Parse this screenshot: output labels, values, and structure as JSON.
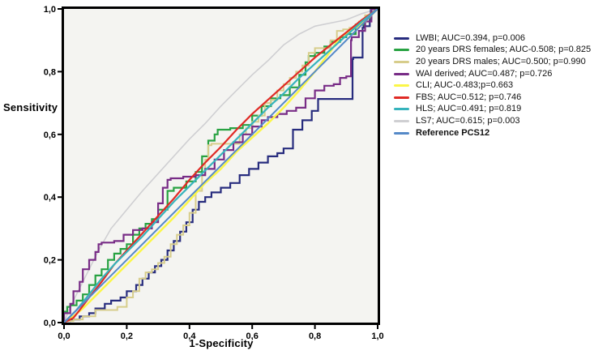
{
  "chart_data": {
    "type": "line",
    "title": "",
    "xlabel": "1-Specificity",
    "ylabel": "Sensitivity",
    "xlim": [
      0,
      1
    ],
    "ylim": [
      0,
      1
    ],
    "grid": false,
    "legend_position": "right",
    "x_tick_labels": [
      "0,0",
      "0,2",
      "0,4",
      "0,6",
      "0,8",
      "1,0"
    ],
    "y_tick_labels": [
      "0,0",
      "0,2",
      "0,4",
      "0,6",
      "0,8",
      "1,0"
    ],
    "tick_values": [
      0,
      0.2,
      0.4,
      0.6,
      0.8,
      1.0
    ],
    "plot_bg": "#f4f4f1",
    "frame_color": "#000000",
    "series": [
      {
        "name": "LS7",
        "auc": 0.615,
        "p": 0.003,
        "color": "#cfcfd2",
        "style": "line",
        "width": 1.6,
        "points": [
          [
            0,
            0
          ],
          [
            0.02,
            0.05
          ],
          [
            0.05,
            0.11
          ],
          [
            0.08,
            0.17
          ],
          [
            0.11,
            0.23
          ],
          [
            0.15,
            0.3
          ],
          [
            0.2,
            0.36
          ],
          [
            0.25,
            0.42
          ],
          [
            0.3,
            0.475
          ],
          [
            0.35,
            0.53
          ],
          [
            0.4,
            0.585
          ],
          [
            0.45,
            0.635
          ],
          [
            0.5,
            0.69
          ],
          [
            0.55,
            0.74
          ],
          [
            0.6,
            0.79
          ],
          [
            0.65,
            0.835
          ],
          [
            0.7,
            0.885
          ],
          [
            0.75,
            0.92
          ],
          [
            0.8,
            0.945
          ],
          [
            0.85,
            0.955
          ],
          [
            0.9,
            0.965
          ],
          [
            0.95,
            0.985
          ],
          [
            1,
            1
          ]
        ]
      },
      {
        "name": "LWBI",
        "auc": 0.394,
        "p": 0.006,
        "color": "#272c7e",
        "style": "step",
        "width": 2.2,
        "points": [
          [
            0,
            0
          ],
          [
            0.02,
            0.005
          ],
          [
            0.05,
            0.01
          ],
          [
            0.08,
            0.02
          ],
          [
            0.1,
            0.03
          ],
          [
            0.13,
            0.045
          ],
          [
            0.15,
            0.06
          ],
          [
            0.18,
            0.07
          ],
          [
            0.2,
            0.08
          ],
          [
            0.23,
            0.1
          ],
          [
            0.25,
            0.12
          ],
          [
            0.27,
            0.14
          ],
          [
            0.29,
            0.16
          ],
          [
            0.31,
            0.18
          ],
          [
            0.33,
            0.2
          ],
          [
            0.35,
            0.23
          ],
          [
            0.37,
            0.26
          ],
          [
            0.39,
            0.29
          ],
          [
            0.41,
            0.32
          ],
          [
            0.43,
            0.36
          ],
          [
            0.45,
            0.385
          ],
          [
            0.47,
            0.4
          ],
          [
            0.5,
            0.415
          ],
          [
            0.53,
            0.43
          ],
          [
            0.56,
            0.445
          ],
          [
            0.59,
            0.47
          ],
          [
            0.62,
            0.49
          ],
          [
            0.65,
            0.51
          ],
          [
            0.68,
            0.53
          ],
          [
            0.7,
            0.54
          ],
          [
            0.73,
            0.555
          ],
          [
            0.76,
            0.615
          ],
          [
            0.79,
            0.645
          ],
          [
            0.81,
            0.675
          ],
          [
            0.835,
            0.713
          ],
          [
            0.92,
            0.713
          ],
          [
            0.922,
            0.84
          ],
          [
            0.952,
            0.845
          ],
          [
            0.955,
            0.94
          ],
          [
            0.975,
            0.945
          ],
          [
            0.978,
            0.97
          ],
          [
            1,
            1
          ]
        ]
      },
      {
        "name": "20 years DRS females",
        "auc": 0.508,
        "p": 0.825,
        "color": "#28a242",
        "style": "step",
        "width": 2.2,
        "points": [
          [
            0,
            0
          ],
          [
            0.01,
            0.035
          ],
          [
            0.02,
            0.05
          ],
          [
            0.04,
            0.055
          ],
          [
            0.06,
            0.07
          ],
          [
            0.08,
            0.09
          ],
          [
            0.1,
            0.12
          ],
          [
            0.12,
            0.15
          ],
          [
            0.14,
            0.17
          ],
          [
            0.16,
            0.2
          ],
          [
            0.18,
            0.22
          ],
          [
            0.2,
            0.235
          ],
          [
            0.22,
            0.25
          ],
          [
            0.24,
            0.28
          ],
          [
            0.26,
            0.3
          ],
          [
            0.28,
            0.315
          ],
          [
            0.3,
            0.33
          ],
          [
            0.33,
            0.36
          ],
          [
            0.35,
            0.42
          ],
          [
            0.39,
            0.43
          ],
          [
            0.42,
            0.45
          ],
          [
            0.44,
            0.48
          ],
          [
            0.46,
            0.53
          ],
          [
            0.48,
            0.58
          ],
          [
            0.49,
            0.6
          ],
          [
            0.53,
            0.615
          ],
          [
            0.57,
            0.62
          ],
          [
            0.6,
            0.63
          ],
          [
            0.63,
            0.66
          ],
          [
            0.66,
            0.69
          ],
          [
            0.69,
            0.715
          ],
          [
            0.72,
            0.725
          ],
          [
            0.75,
            0.75
          ],
          [
            0.77,
            0.79
          ],
          [
            0.78,
            0.83
          ],
          [
            0.8,
            0.85
          ],
          [
            0.83,
            0.86
          ],
          [
            0.85,
            0.88
          ],
          [
            0.88,
            0.895
          ],
          [
            0.9,
            0.91
          ],
          [
            0.93,
            0.92
          ],
          [
            0.96,
            0.95
          ],
          [
            0.98,
            0.97
          ],
          [
            1,
            1
          ]
        ]
      },
      {
        "name": "20 years DRS males",
        "auc": 0.5,
        "p": 0.99,
        "color": "#d7cd8b",
        "style": "step",
        "width": 2.0,
        "points": [
          [
            0,
            0
          ],
          [
            0.03,
            0.005
          ],
          [
            0.06,
            0.01
          ],
          [
            0.1,
            0.02
          ],
          [
            0.13,
            0.04
          ],
          [
            0.17,
            0.04
          ],
          [
            0.2,
            0.05
          ],
          [
            0.22,
            0.08
          ],
          [
            0.24,
            0.1
          ],
          [
            0.26,
            0.14
          ],
          [
            0.28,
            0.16
          ],
          [
            0.3,
            0.17
          ],
          [
            0.32,
            0.19
          ],
          [
            0.34,
            0.21
          ],
          [
            0.36,
            0.25
          ],
          [
            0.38,
            0.28
          ],
          [
            0.4,
            0.31
          ],
          [
            0.42,
            0.35
          ],
          [
            0.44,
            0.42
          ],
          [
            0.45,
            0.47
          ],
          [
            0.46,
            0.52
          ],
          [
            0.47,
            0.565
          ],
          [
            0.56,
            0.57
          ],
          [
            0.58,
            0.6
          ],
          [
            0.6,
            0.62
          ],
          [
            0.62,
            0.64
          ],
          [
            0.64,
            0.66
          ],
          [
            0.66,
            0.7
          ],
          [
            0.68,
            0.71
          ],
          [
            0.7,
            0.74
          ],
          [
            0.72,
            0.76
          ],
          [
            0.74,
            0.78
          ],
          [
            0.76,
            0.8
          ],
          [
            0.78,
            0.82
          ],
          [
            0.8,
            0.86
          ],
          [
            0.82,
            0.875
          ],
          [
            0.85,
            0.875
          ],
          [
            0.87,
            0.9
          ],
          [
            0.89,
            0.93
          ],
          [
            0.91,
            0.935
          ],
          [
            0.94,
            0.94
          ],
          [
            0.96,
            0.96
          ],
          [
            0.98,
            0.98
          ],
          [
            1,
            1
          ]
        ]
      },
      {
        "name": "WAI derived",
        "auc": 0.487,
        "p": 0.726,
        "color": "#782c86",
        "style": "step",
        "width": 2.2,
        "points": [
          [
            0,
            0
          ],
          [
            0.02,
            0.03
          ],
          [
            0.03,
            0.06
          ],
          [
            0.05,
            0.1
          ],
          [
            0.06,
            0.13
          ],
          [
            0.08,
            0.17
          ],
          [
            0.1,
            0.2
          ],
          [
            0.11,
            0.225
          ],
          [
            0.12,
            0.25
          ],
          [
            0.16,
            0.255
          ],
          [
            0.19,
            0.26
          ],
          [
            0.22,
            0.28
          ],
          [
            0.25,
            0.295
          ],
          [
            0.28,
            0.3
          ],
          [
            0.3,
            0.32
          ],
          [
            0.315,
            0.38
          ],
          [
            0.33,
            0.43
          ],
          [
            0.34,
            0.455
          ],
          [
            0.38,
            0.46
          ],
          [
            0.42,
            0.465
          ],
          [
            0.45,
            0.47
          ],
          [
            0.48,
            0.49
          ],
          [
            0.51,
            0.52
          ],
          [
            0.54,
            0.55
          ],
          [
            0.57,
            0.575
          ],
          [
            0.6,
            0.6
          ],
          [
            0.63,
            0.625
          ],
          [
            0.65,
            0.645
          ],
          [
            0.68,
            0.655
          ],
          [
            0.71,
            0.665
          ],
          [
            0.74,
            0.675
          ],
          [
            0.77,
            0.685
          ],
          [
            0.8,
            0.715
          ],
          [
            0.83,
            0.74
          ],
          [
            0.86,
            0.755
          ],
          [
            0.88,
            0.76
          ],
          [
            0.9,
            0.78
          ],
          [
            0.915,
            0.785
          ],
          [
            0.917,
            0.9
          ],
          [
            0.94,
            0.91
          ],
          [
            0.96,
            0.93
          ],
          [
            0.98,
            0.96
          ],
          [
            1,
            1
          ]
        ]
      },
      {
        "name": "CLI",
        "auc": 0.483,
        "p": 0.663,
        "color": "#fbf648",
        "style": "line",
        "width": 2.5,
        "points": [
          [
            0,
            0
          ],
          [
            0.03,
            0.02
          ],
          [
            0.06,
            0.045
          ],
          [
            0.1,
            0.085
          ],
          [
            0.15,
            0.135
          ],
          [
            0.2,
            0.185
          ],
          [
            0.25,
            0.235
          ],
          [
            0.3,
            0.285
          ],
          [
            0.35,
            0.335
          ],
          [
            0.4,
            0.39
          ],
          [
            0.45,
            0.445
          ],
          [
            0.5,
            0.49
          ],
          [
            0.55,
            0.545
          ],
          [
            0.6,
            0.59
          ],
          [
            0.65,
            0.635
          ],
          [
            0.7,
            0.685
          ],
          [
            0.75,
            0.74
          ],
          [
            0.8,
            0.8
          ],
          [
            0.85,
            0.865
          ],
          [
            0.88,
            0.91
          ],
          [
            0.92,
            0.935
          ],
          [
            0.96,
            0.96
          ],
          [
            1,
            1
          ]
        ]
      },
      {
        "name": "FBS",
        "auc": 0.512,
        "p": 0.746,
        "color": "#e02a25",
        "style": "line",
        "width": 2.2,
        "points": [
          [
            0,
            0
          ],
          [
            0.03,
            0.015
          ],
          [
            0.05,
            0.04
          ],
          [
            0.08,
            0.08
          ],
          [
            0.12,
            0.13
          ],
          [
            0.16,
            0.185
          ],
          [
            0.2,
            0.23
          ],
          [
            0.25,
            0.285
          ],
          [
            0.3,
            0.34
          ],
          [
            0.35,
            0.395
          ],
          [
            0.4,
            0.455
          ],
          [
            0.45,
            0.51
          ],
          [
            0.5,
            0.56
          ],
          [
            0.55,
            0.615
          ],
          [
            0.6,
            0.665
          ],
          [
            0.65,
            0.71
          ],
          [
            0.7,
            0.755
          ],
          [
            0.75,
            0.8
          ],
          [
            0.8,
            0.845
          ],
          [
            0.85,
            0.885
          ],
          [
            0.9,
            0.925
          ],
          [
            0.95,
            0.965
          ],
          [
            1,
            1
          ]
        ]
      },
      {
        "name": "HLS",
        "auc": 0.491,
        "p": 0.819,
        "color": "#36b3bc",
        "style": "line",
        "width": 2.2,
        "points": [
          [
            0,
            0
          ],
          [
            0.04,
            0.04
          ],
          [
            0.08,
            0.09
          ],
          [
            0.12,
            0.14
          ],
          [
            0.16,
            0.185
          ],
          [
            0.2,
            0.225
          ],
          [
            0.25,
            0.275
          ],
          [
            0.3,
            0.33
          ],
          [
            0.35,
            0.385
          ],
          [
            0.4,
            0.435
          ],
          [
            0.45,
            0.485
          ],
          [
            0.5,
            0.535
          ],
          [
            0.55,
            0.585
          ],
          [
            0.6,
            0.635
          ],
          [
            0.65,
            0.685
          ],
          [
            0.7,
            0.73
          ],
          [
            0.75,
            0.78
          ],
          [
            0.8,
            0.825
          ],
          [
            0.85,
            0.87
          ],
          [
            0.9,
            0.915
          ],
          [
            0.95,
            0.96
          ],
          [
            1,
            1
          ]
        ]
      },
      {
        "name": "Reference PCS12",
        "color": "#5589c8",
        "style": "line",
        "width": 2.0,
        "points": [
          [
            0,
            0
          ],
          [
            1,
            1
          ]
        ]
      }
    ]
  },
  "legend": {
    "items": [
      {
        "label": "LWBI; AUC=0.394, p=0.006",
        "color": "#272c7e",
        "bold": false
      },
      {
        "label": "20 years DRS females; AUC-0.508; p=0.825",
        "color": "#28a242",
        "bold": false
      },
      {
        "label": "20 years DRS males; AUC=0.500; p=0.990",
        "color": "#d7cd8b",
        "bold": false
      },
      {
        "label": "WAI derived; AUC=0.487; p=0.726",
        "color": "#782c86",
        "bold": false
      },
      {
        "label": "CLI; AUC-0.483;p=0.663",
        "color": "#fbf648",
        "bold": false
      },
      {
        "label": "FBS; AUC=0.512; p=0.746",
        "color": "#e02a25",
        "bold": false
      },
      {
        "label": "HLS; AUC=0.491; p=0.819",
        "color": "#36b3bc",
        "bold": false
      },
      {
        "label": "LS7; AUC=0.615; p=0.003",
        "color": "#cfcfd2",
        "bold": false
      },
      {
        "label": "Reference PCS12",
        "color": "#5589c8",
        "bold": true
      }
    ]
  }
}
